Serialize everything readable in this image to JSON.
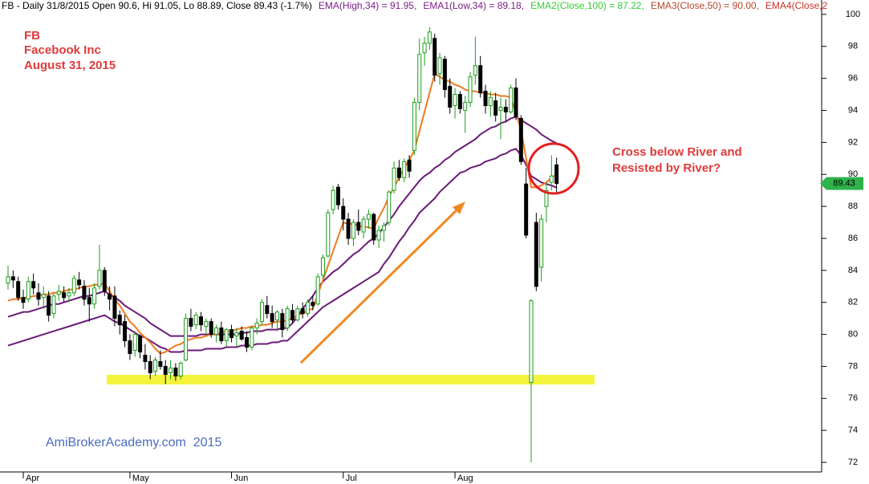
{
  "chart_data": {
    "type": "candlestick",
    "header": [
      {
        "text": "FB - Daily 31/8/2015 Open 90.6, Hi 91.05, Lo 88.89, Close 89.43 (-1.7%)",
        "color": "#000000"
      },
      {
        "text": "EMA(High,34) = 91.95,",
        "color": "#7b1f86"
      },
      {
        "text": "EMA1(Low,34) = 89.18,",
        "color": "#7b1f86"
      },
      {
        "text": "EMA2(Close,100) = 87.22,",
        "color": "#33cc33"
      },
      {
        "text": "EMA3(Close,50) = 90.00,",
        "color": "#b5452a"
      },
      {
        "text": "EMA4(Close,2",
        "color": "#c8322a"
      }
    ],
    "annotations": {
      "symbol": "FB",
      "company": "Facebook Inc",
      "date": "August 31, 2015",
      "note": [
        "Cross below River and",
        "Resisted by River?"
      ],
      "watermark": "AmiBrokerAcademy.com  2015"
    },
    "categories": [
      null,
      null,
      null,
      "Apr",
      null,
      null,
      null,
      null,
      null,
      null,
      null,
      null,
      null,
      null,
      null,
      null,
      null,
      null,
      null,
      null,
      null,
      null,
      null,
      null,
      "May",
      null,
      null,
      null,
      null,
      null,
      null,
      null,
      null,
      null,
      null,
      null,
      null,
      null,
      null,
      null,
      null,
      null,
      null,
      null,
      "Jun",
      null,
      null,
      null,
      null,
      null,
      null,
      null,
      null,
      null,
      null,
      null,
      null,
      null,
      null,
      null,
      null,
      null,
      null,
      null,
      null,
      null,
      "Jul",
      null,
      null,
      null,
      null,
      null,
      null,
      null,
      null,
      null,
      null,
      null,
      null,
      null,
      null,
      null,
      null,
      null,
      null,
      null,
      null,
      null,
      "Aug",
      null,
      null,
      null,
      null,
      null,
      null,
      null,
      null,
      null,
      null,
      null,
      null,
      null,
      null,
      null,
      null,
      null,
      null,
      null,
      null
    ],
    "open": [
      83.2,
      83.6,
      83.3,
      82.3,
      82.2,
      83.3,
      82.6,
      82.3,
      82.4,
      81.3,
      82.5,
      82.6,
      82.4,
      82.6,
      83.4,
      83.0,
      82.3,
      81.9,
      83.0,
      84.0,
      82.5,
      82.4,
      81.2,
      80.8,
      79.6,
      79.0,
      79.9,
      78.7,
      78.3,
      77.7,
      78.3,
      78.0,
      77.6,
      77.9,
      77.4,
      78.4,
      81.0,
      80.6,
      81.1,
      80.5,
      80.8,
      80.0,
      80.4,
      79.6,
      80.3,
      79.9,
      80.2,
      79.8,
      79.2,
      80.4,
      80.8,
      81.8,
      81.3,
      80.9,
      81.3,
      80.4,
      81.5,
      80.9,
      81.6,
      81.3,
      82.0,
      81.9,
      83.7,
      84.9,
      87.8,
      89.2,
      88.0,
      87.2,
      86.0,
      87.0,
      86.4,
      87.2,
      87.5,
      85.9,
      86.5,
      87.0,
      89.0,
      90.4,
      89.8,
      90.9,
      91.5,
      94.5,
      97.6,
      98.2,
      98.5,
      96.3,
      97.2,
      95.5,
      94.3,
      95.0,
      94.0,
      94.5,
      96.2,
      96.8,
      95.2,
      94.3,
      94.6,
      94.0,
      94.2,
      93.9,
      95.4,
      93.5,
      89.4,
      77.0,
      87.0,
      84.2,
      88.0,
      89.5,
      90.6
    ],
    "high": [
      84.3,
      84.0,
      83.6,
      82.8,
      83.6,
      83.8,
      83.2,
      83.0,
      82.7,
      82.6,
      83.1,
      83.0,
      82.9,
      83.7,
      83.9,
      83.4,
      82.9,
      83.2,
      85.6,
      84.2,
      83.0,
      83.0,
      81.5,
      81.2,
      80.0,
      80.2,
      80.0,
      79.4,
      78.7,
      78.6,
      79.0,
      78.4,
      78.4,
      78.2,
      78.3,
      81.3,
      81.6,
      81.4,
      81.4,
      81.0,
      81.0,
      80.6,
      80.8,
      80.4,
      80.6,
      80.4,
      80.5,
      80.2,
      80.5,
      81.0,
      82.2,
      82.4,
      81.8,
      81.5,
      81.6,
      81.8,
      81.9,
      81.8,
      82.0,
      82.2,
      82.4,
      83.8,
      85.0,
      87.8,
      89.3,
      89.4,
      88.5,
      87.6,
      87.2,
      87.8,
      87.4,
      87.8,
      87.6,
      86.8,
      87.0,
      89.0,
      90.8,
      90.9,
      91.0,
      91.2,
      94.8,
      98.5,
      98.6,
      99.2,
      98.8,
      97.6,
      97.4,
      96.0,
      95.4,
      95.2,
      94.9,
      96.4,
      98.6,
      97.4,
      95.6,
      95.2,
      95.1,
      94.8,
      94.7,
      95.6,
      96.0,
      93.7,
      90.4,
      82.2,
      87.6,
      87.5,
      89.5,
      91.2,
      91.05
    ],
    "low": [
      82.8,
      82.9,
      82.1,
      81.6,
      82.0,
      82.5,
      81.8,
      81.6,
      80.8,
      81.0,
      82.1,
      82.0,
      82.0,
      82.4,
      82.8,
      81.8,
      80.8,
      81.6,
      82.8,
      82.4,
      81.5,
      80.5,
      80.0,
      79.2,
      78.4,
      78.6,
      78.5,
      77.8,
      77.2,
      77.4,
      77.8,
      76.9,
      77.2,
      77.1,
      77.2,
      78.3,
      80.2,
      80.3,
      80.2,
      80.0,
      79.8,
      79.5,
      79.4,
      79.2,
      79.5,
      79.2,
      79.6,
      78.9,
      79.0,
      80.0,
      80.6,
      81.0,
      80.4,
      80.2,
      79.8,
      80.2,
      80.7,
      80.8,
      81.0,
      81.1,
      81.5,
      81.8,
      83.5,
      84.8,
      87.5,
      87.8,
      86.5,
      85.6,
      85.5,
      86.2,
      86.0,
      86.6,
      85.6,
      85.4,
      85.8,
      86.8,
      88.8,
      89.6,
      89.5,
      89.8,
      91.2,
      94.0,
      96.8,
      97.8,
      95.8,
      95.6,
      94.8,
      93.8,
      93.5,
      93.8,
      92.6,
      94.2,
      95.6,
      94.8,
      93.8,
      93.6,
      93.3,
      92.2,
      93.3,
      93.8,
      93.4,
      90.6,
      86.0,
      72.0,
      82.7,
      83.3,
      87.0,
      89.0,
      88.89
    ],
    "close": [
      83.6,
      83.4,
      82.3,
      82.0,
      83.3,
      82.9,
      82.2,
      82.5,
      81.2,
      82.4,
      82.7,
      82.3,
      82.6,
      83.5,
      83.1,
      82.2,
      81.9,
      82.9,
      84.0,
      82.7,
      82.2,
      81.0,
      80.6,
      79.6,
      78.8,
      80.0,
      78.9,
      78.3,
      77.6,
      78.4,
      78.0,
      77.5,
      77.9,
      77.4,
      78.2,
      81.0,
      80.5,
      81.2,
      80.6,
      80.8,
      80.0,
      80.4,
      79.6,
      80.3,
      79.8,
      80.1,
      79.7,
      79.2,
      80.4,
      80.7,
      82.0,
      81.3,
      80.8,
      81.4,
      80.3,
      81.6,
      80.9,
      81.6,
      81.3,
      82.0,
      81.8,
      83.6,
      84.8,
      87.6,
      89.0,
      88.1,
      87.2,
      86.0,
      87.0,
      86.5,
      87.2,
      87.5,
      85.9,
      86.5,
      86.8,
      88.9,
      90.4,
      89.8,
      90.8,
      90.2,
      94.5,
      97.5,
      98.2,
      98.9,
      96.2,
      97.3,
      95.3,
      94.2,
      95.0,
      94.1,
      94.5,
      96.1,
      96.8,
      95.1,
      94.3,
      94.8,
      93.7,
      94.2,
      93.9,
      95.4,
      93.6,
      90.8,
      86.2,
      82.1,
      83.0,
      87.2,
      89.0,
      89.9,
      89.43
    ],
    "up_color": "#1a9e1a",
    "down_color": "#000000",
    "series": [
      {
        "color": "#6a1a78",
        "values": [
          81.1,
          81.2,
          81.3,
          81.4,
          81.4,
          81.5,
          81.6,
          81.7,
          81.8,
          81.9,
          81.9,
          82.0,
          82.1,
          82.2,
          82.3,
          82.4,
          82.4,
          82.5,
          82.6,
          82.7,
          82.5,
          82.3,
          82.1,
          81.8,
          81.6,
          81.4,
          81.2,
          81.0,
          80.7,
          80.5,
          80.3,
          80.1,
          79.9,
          79.9,
          79.9,
          79.9,
          79.9,
          79.9,
          80.0,
          80.0,
          80.0,
          80.0,
          80.0,
          80.0,
          80.0,
          80.0,
          80.1,
          80.1,
          80.2,
          80.2,
          80.2,
          80.3,
          80.3,
          80.3,
          80.4,
          80.4,
          80.7,
          81.1,
          81.6,
          82.0,
          82.4,
          82.9,
          83.3,
          83.6,
          83.9,
          84.1,
          84.4,
          84.7,
          85.0,
          85.2,
          85.5,
          85.8,
          86.0,
          86.3,
          86.7,
          87.1,
          87.5,
          88.0,
          88.4,
          88.8,
          89.2,
          89.6,
          89.9,
          90.1,
          90.4,
          90.6,
          90.9,
          91.1,
          91.4,
          91.6,
          91.8,
          92.0,
          92.2,
          92.5,
          92.7,
          92.9,
          93.0,
          93.2,
          93.3,
          93.5,
          93.6,
          93.4,
          93.2,
          93.0,
          92.8,
          92.5,
          92.3,
          92.1,
          91.95
        ]
      },
      {
        "color": "#6a1a78",
        "values": [
          79.3,
          79.4,
          79.5,
          79.6,
          79.7,
          79.8,
          79.9,
          80.0,
          80.1,
          80.2,
          80.3,
          80.4,
          80.5,
          80.6,
          80.7,
          80.8,
          80.9,
          81.0,
          81.1,
          81.2,
          81.0,
          80.8,
          80.7,
          80.5,
          80.3,
          80.1,
          79.9,
          79.8,
          79.6,
          79.4,
          79.2,
          79.1,
          78.9,
          78.9,
          78.9,
          79.0,
          79.0,
          79.0,
          79.0,
          79.1,
          79.1,
          79.1,
          79.1,
          79.2,
          79.2,
          79.2,
          79.3,
          79.3,
          79.3,
          79.4,
          79.4,
          79.4,
          79.5,
          79.5,
          79.6,
          79.6,
          79.9,
          80.2,
          80.5,
          80.8,
          81.1,
          81.4,
          81.7,
          81.9,
          82.1,
          82.3,
          82.5,
          82.7,
          82.9,
          83.1,
          83.3,
          83.5,
          83.7,
          83.9,
          84.4,
          84.8,
          85.3,
          85.8,
          86.2,
          86.7,
          87.1,
          87.6,
          87.9,
          88.2,
          88.5,
          88.9,
          89.2,
          89.5,
          89.8,
          90.1,
          90.2,
          90.4,
          90.5,
          90.6,
          90.8,
          90.9,
          91.0,
          91.2,
          91.3,
          91.5,
          91.6,
          91.2,
          90.6,
          89.9,
          89.7,
          89.5,
          89.4,
          89.3,
          89.18
        ]
      },
      {
        "color": "#ee7a22",
        "values": [
          82.1,
          82.2,
          82.2,
          82.3,
          82.3,
          82.4,
          82.4,
          82.5,
          82.5,
          82.6,
          82.6,
          82.7,
          82.8,
          82.8,
          82.9,
          83.0,
          83.0,
          83.1,
          83.1,
          83.2,
          82.7,
          82.2,
          81.8,
          81.3,
          80.8,
          80.5,
          80.1,
          79.8,
          79.5,
          79.1,
          78.8,
          78.9,
          79.1,
          79.3,
          79.4,
          79.6,
          79.7,
          79.8,
          79.8,
          79.9,
          80.0,
          80.0,
          80.1,
          80.2,
          80.2,
          80.3,
          80.4,
          80.4,
          80.5,
          80.5,
          80.6,
          80.6,
          80.7,
          80.8,
          80.8,
          80.9,
          81.0,
          81.2,
          81.3,
          81.5,
          81.6,
          82.5,
          83.4,
          84.3,
          85.2,
          86.1,
          87.0,
          86.9,
          86.9,
          86.8,
          86.7,
          86.7,
          86.6,
          87.3,
          87.9,
          88.6,
          89.2,
          89.8,
          90.4,
          90.9,
          91.5,
          92.7,
          93.9,
          95.1,
          96.3,
          96.1,
          95.9,
          95.8,
          95.6,
          95.5,
          95.3,
          95.2,
          95.2,
          95.1,
          95.1,
          95.0,
          95.0,
          94.9,
          94.9,
          94.8,
          93.8,
          92.8,
          91.0,
          89.2,
          89.2,
          89.3,
          89.5,
          89.8,
          90.0
        ]
      }
    ],
    "ylim": [
      71.4,
      100.9
    ],
    "yticks": [
      72,
      74,
      76,
      78,
      80,
      82,
      84,
      86,
      88,
      90,
      92,
      94,
      96,
      98,
      100
    ],
    "last_price": 89.43,
    "last_price_color": "#2fb24a"
  }
}
